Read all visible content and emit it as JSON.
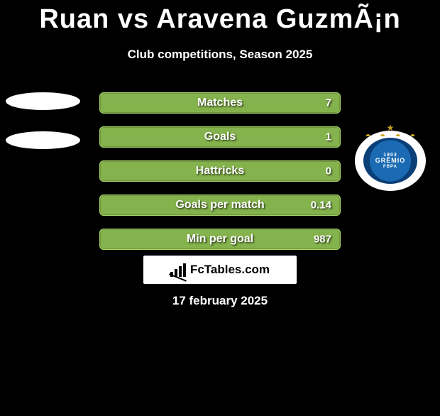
{
  "title": "Ruan vs Aravena GuzmÃ¡n",
  "subtitle": "Club competitions, Season 2025",
  "date": "17 february 2025",
  "branding": "FcTables.com",
  "colors": {
    "row_fill": "#84b24c",
    "row_border": "#a9d46a",
    "badge_blue": "#1a6bb3",
    "badge_gold": "#c9a227"
  },
  "club_badge": {
    "year": "1903",
    "name": "GRÊMIO",
    "sub": "FBPA"
  },
  "stats": [
    {
      "label": "Matches",
      "value": "7"
    },
    {
      "label": "Goals",
      "value": "1"
    },
    {
      "label": "Hattricks",
      "value": "0"
    },
    {
      "label": "Goals per match",
      "value": "0.14"
    },
    {
      "label": "Min per goal",
      "value": "987"
    }
  ]
}
